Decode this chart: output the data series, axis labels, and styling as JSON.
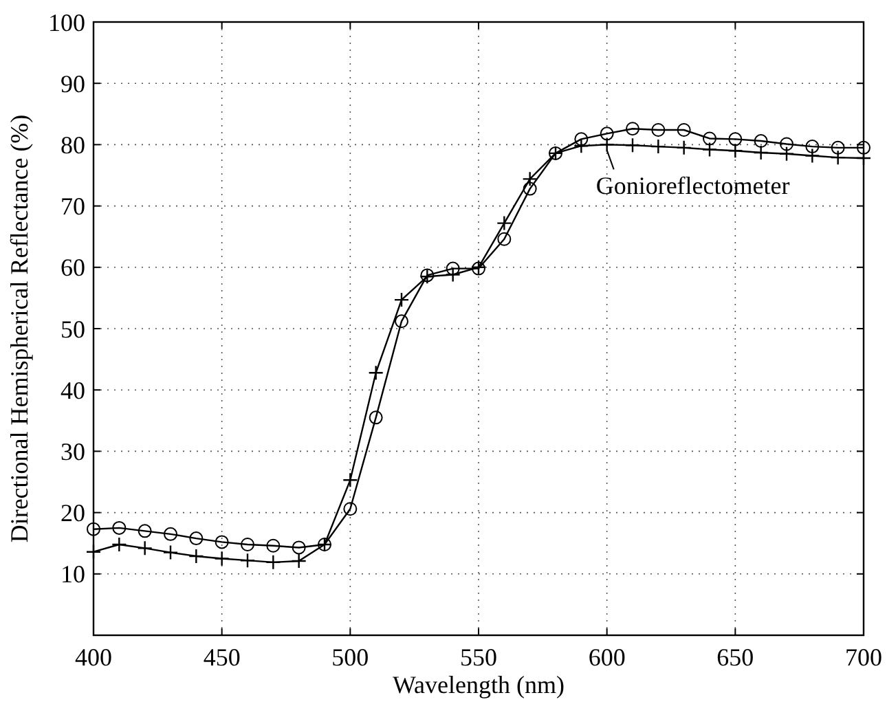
{
  "chart_data": {
    "type": "line",
    "xlabel": "Wavelength (nm)",
    "ylabel": "Directional Hemispherical Reflectance (%)",
    "x": [
      400,
      410,
      420,
      430,
      440,
      450,
      460,
      470,
      480,
      490,
      500,
      510,
      520,
      530,
      540,
      550,
      560,
      570,
      580,
      590,
      600,
      610,
      620,
      630,
      640,
      650,
      660,
      670,
      680,
      690,
      700
    ],
    "series": [
      {
        "color": "#000000",
        "marker": "circle",
        "values": [
          17.3,
          17.5,
          17,
          16.5,
          15.8,
          15.2,
          14.8,
          14.6,
          14.3,
          14.8,
          20.6,
          35.5,
          51.2,
          58.7,
          59.8,
          59.8,
          64.6,
          72.8,
          78.6,
          80.9,
          81.8,
          82.6,
          82.4,
          82.4,
          81,
          80.9,
          80.6,
          80.1,
          79.7,
          79.5,
          79.5
        ]
      },
      {
        "name": "Gonioreflectometer",
        "color": "#000000",
        "marker": "cross",
        "values": [
          13.6,
          14.8,
          14.2,
          13.5,
          12.9,
          12.5,
          12.2,
          11.9,
          12.1,
          14.8,
          25.3,
          42.8,
          54.7,
          58.5,
          58.8,
          60,
          67.2,
          74.4,
          78.6,
          79.8,
          80,
          79.9,
          79.7,
          79.5,
          79.2,
          79,
          78.7,
          78.5,
          78.2,
          77.9,
          77.8
        ]
      }
    ],
    "xlim": [
      400,
      700
    ],
    "ylim": [
      0,
      100
    ],
    "xticks": [
      400,
      450,
      500,
      550,
      600,
      650,
      700
    ],
    "yticks": [
      10,
      20,
      30,
      40,
      50,
      60,
      70,
      80,
      90,
      100
    ],
    "grid": true,
    "line_style": "solid"
  }
}
